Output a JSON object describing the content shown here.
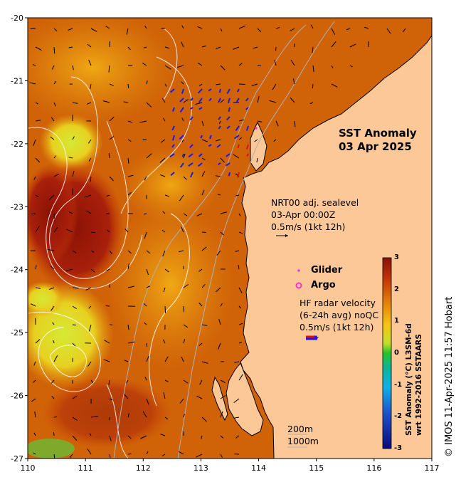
{
  "map": {
    "title_line1": "SST Anomaly",
    "title_line2": "03 Apr 2025",
    "x_ticks": [
      "110",
      "111",
      "112",
      "113",
      "114",
      "115",
      "116",
      "117"
    ],
    "y_ticks": [
      "-20",
      "-21",
      "-22",
      "-23",
      "-24",
      "-25",
      "-26",
      "-27"
    ],
    "lon_range": [
      110,
      117
    ],
    "lat_range": [
      -27,
      -20
    ],
    "sealevel_note": {
      "line1": "NRT00 adj. sealevel",
      "line2": "03-Apr 00:00Z",
      "line3": "0.5m/s (1kt 12h)"
    },
    "legend": {
      "glider_label": "Glider",
      "argo_label": "Argo"
    },
    "hf_radar_note": {
      "line1": "HF radar velocity",
      "line2": "(6-24h avg) noQC",
      "line3": "0.5m/s (1kt 12h)"
    },
    "depth_labels": [
      "200m",
      "1000m"
    ],
    "colorbar": {
      "ticks": [
        "3",
        "2",
        "1",
        "0",
        "-1",
        "-2",
        "-3"
      ],
      "label_line1": "SST Anomaly (°C) L3SM-6d",
      "label_line2": "wrt 1992-2016 SSTAARS"
    },
    "credit": "© IMOS 11-Apr-2025 11:57 Hobart",
    "colors": {
      "land": "#fcc898",
      "ocean_base": "#d86a06",
      "hot": "#9e1808",
      "warm_mid": "#f29a10",
      "cool": "#c8e030",
      "glider": "#ff33cc",
      "argo": "#ff33cc",
      "hf_vector": "#1a1ae0",
      "hf_vector_alt": "#e01010"
    }
  }
}
